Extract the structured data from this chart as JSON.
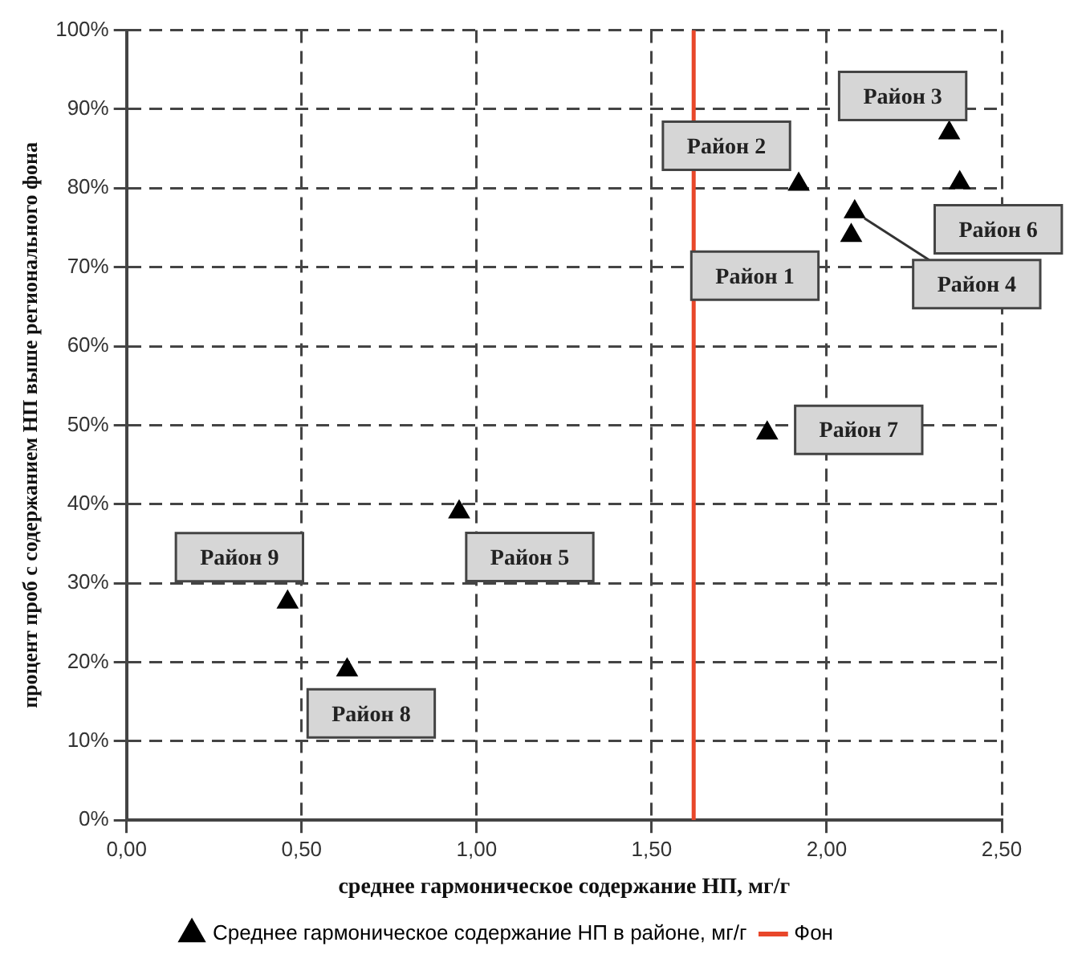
{
  "chart_data": {
    "type": "scatter",
    "xlabel": "среднее гармоническое содержание НП, мг/г",
    "ylabel": "процент проб с содержанием НП выше регионального фона",
    "x": [
      2.07,
      1.92,
      2.35,
      2.08,
      0.95,
      2.38,
      1.83,
      0.63,
      0.46
    ],
    "series": [
      {
        "name": "Среднее гармоническое содержание НП в районе, мг/г",
        "color": "#000000",
        "values": [
          74,
          80.5,
          87,
          77,
          39,
          80.7,
          49,
          19,
          27.6
        ]
      }
    ],
    "marker": "triangle",
    "xlim": [
      0,
      2.5
    ],
    "xticks": [
      {
        "value": 0,
        "label": "0,00"
      },
      {
        "value": 0.5,
        "label": "0,50"
      },
      {
        "value": 1,
        "label": "1,00"
      },
      {
        "value": 1.5,
        "label": "1,50"
      },
      {
        "value": 2,
        "label": "2,00"
      },
      {
        "value": 2.5,
        "label": "2,50"
      }
    ],
    "ylim": [
      0,
      100
    ],
    "yticks": [
      {
        "value": 0,
        "label": "0%"
      },
      {
        "value": 10,
        "label": "10%"
      },
      {
        "value": 20,
        "label": "20%"
      },
      {
        "value": 30,
        "label": "30%"
      },
      {
        "value": 40,
        "label": "40%"
      },
      {
        "value": 50,
        "label": "50%"
      },
      {
        "value": 60,
        "label": "60%"
      },
      {
        "value": 70,
        "label": "70%"
      },
      {
        "value": 80,
        "label": "80%"
      },
      {
        "value": 90,
        "label": "90%"
      },
      {
        "value": 100,
        "label": "100%"
      }
    ],
    "grid": true,
    "legend": "bottom",
    "ref_lines": [
      {
        "axis": "x",
        "value": 1.62,
        "label": "Фон",
        "color": "#e8472a"
      }
    ],
    "annotations": [
      {
        "text": "Район 1",
        "x": 2.07,
        "y": 74
      },
      {
        "text": "Район 2",
        "x": 1.92,
        "y": 80.5
      },
      {
        "text": "Район 3",
        "x": 2.35,
        "y": 87
      },
      {
        "text": "Район 4",
        "x": 2.08,
        "y": 77
      },
      {
        "text": "Район 5",
        "x": 0.95,
        "y": 39
      },
      {
        "text": "Район 6",
        "x": 2.38,
        "y": 80.7
      },
      {
        "text": "Район 7",
        "x": 1.83,
        "y": 49
      },
      {
        "text": "Район 8",
        "x": 0.63,
        "y": 19
      },
      {
        "text": "Район 9",
        "x": 0.46,
        "y": 27.6
      }
    ]
  }
}
